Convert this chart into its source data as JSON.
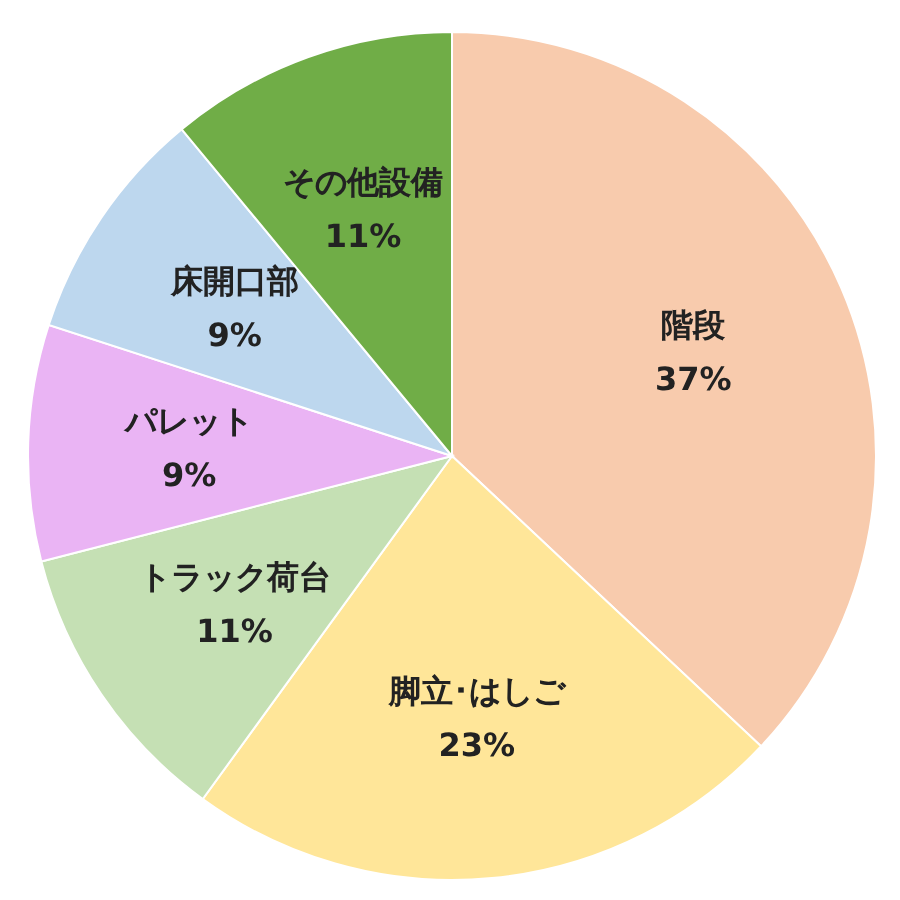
{
  "chart_data": {
    "type": "pie",
    "categories": [
      "階段",
      "脚立･はしご",
      "トラック荷台",
      "パレット",
      "床開口部",
      "その他設備"
    ],
    "values": [
      37,
      23,
      11,
      9,
      9,
      11
    ],
    "value_labels": [
      "37%",
      "23%",
      "11%",
      "9%",
      "9%",
      "11%"
    ],
    "colors": [
      "#f8cbad",
      "#ffe699",
      "#c5e0b4",
      "#eab4f4",
      "#bdd7ee",
      "#70ad47"
    ]
  }
}
